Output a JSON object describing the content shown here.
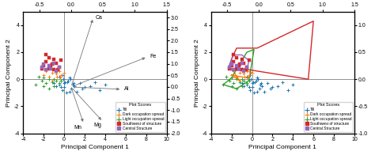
{
  "chart_data": [
    {
      "type": "scatter",
      "xlabel": "Principal Component 1",
      "ylabel": "Principal Component 2",
      "xlim": [
        -4,
        10
      ],
      "ylim": [
        -4,
        5
      ],
      "xticks": [
        -4,
        -2,
        0,
        2,
        4,
        6,
        8,
        10
      ],
      "yticks": [
        -4,
        -2,
        0,
        2,
        4
      ],
      "x2lim": [
        -0.75,
        1.5
      ],
      "x2ticks": [
        {
          "value": -0.5,
          "label": "-0.5"
        },
        {
          "value": 0.0,
          "label": "0.0"
        },
        {
          "value": 0.5,
          "label": "0.5"
        },
        {
          "value": 1.0,
          "label": "1.0"
        },
        {
          "value": 1.5,
          "label": "1.5"
        }
      ],
      "y2lim": [
        -2.0,
        3.25
      ],
      "y2ticks": [
        {
          "value": -2.0,
          "label": "-2.0"
        },
        {
          "value": -1.5,
          "label": "-1.5"
        },
        {
          "value": -1.0,
          "label": "-1.0"
        },
        {
          "value": -0.5,
          "label": "-0.5"
        },
        {
          "value": 0.0,
          "label": "0.0"
        },
        {
          "value": 0.5,
          "label": "0.5"
        },
        {
          "value": 1.0,
          "label": "1.0"
        },
        {
          "value": 1.5,
          "label": "1.5"
        },
        {
          "value": 2.0,
          "label": "2.0"
        },
        {
          "value": 2.5,
          "label": "2.5"
        },
        {
          "value": 3.0,
          "label": "3.0"
        }
      ],
      "reference_lines": {
        "x": [
          0
        ],
        "y": [
          0
        ],
        "color": "#666666"
      },
      "legend": "lower right",
      "legend_title": "Plot Scores",
      "series": [
        {
          "name": "Till",
          "marker": "plus",
          "points": [
            [
              -0.5,
              0.2
            ],
            [
              -0.3,
              -0.1
            ],
            [
              0.0,
              -0.3
            ],
            [
              0.3,
              -0.2
            ],
            [
              0.5,
              0.1
            ],
            [
              0.8,
              -0.4
            ],
            [
              1.0,
              -0.5
            ],
            [
              1.5,
              -0.3
            ],
            [
              2.0,
              -0.6
            ],
            [
              2.5,
              -0.5
            ],
            [
              3.0,
              -0.2
            ],
            [
              3.5,
              -0.8
            ],
            [
              4.0,
              -0.4
            ],
            [
              -0.8,
              -0.5
            ],
            [
              -0.2,
              -0.8
            ],
            [
              0.2,
              -1.0
            ],
            [
              0.0,
              -0.6
            ],
            [
              0.5,
              -0.9
            ],
            [
              -0.5,
              -0.4
            ],
            [
              -1.0,
              -0.3
            ],
            [
              -0.3,
              -0.6
            ],
            [
              0.7,
              -0.7
            ],
            [
              1.2,
              -0.9
            ],
            [
              -0.1,
              0.0
            ],
            [
              0.4,
              -0.1
            ],
            [
              0.1,
              -0.2
            ],
            [
              -0.2,
              0.3
            ],
            [
              0.6,
              0.0
            ],
            [
              0.9,
              -0.3
            ],
            [
              1.8,
              -0.7
            ]
          ]
        },
        {
          "name": "Dark occupation spread",
          "marker": "plus",
          "points": [
            [
              -1.5,
              0.2
            ],
            [
              -1.2,
              0.5
            ],
            [
              -1.0,
              0.8
            ],
            [
              -0.8,
              0.4
            ],
            [
              -0.5,
              0.6
            ],
            [
              -0.3,
              0.3
            ],
            [
              0.0,
              0.5
            ],
            [
              -2.0,
              0.3
            ],
            [
              -1.8,
              0.6
            ],
            [
              -1.2,
              -0.1
            ],
            [
              -0.7,
              0.2
            ],
            [
              -0.4,
              0.1
            ]
          ]
        },
        {
          "name": "Light occupation spread",
          "marker": "plus",
          "points": [
            [
              -2.5,
              0.2
            ],
            [
              -2.2,
              -0.1
            ],
            [
              -2.0,
              0.1
            ],
            [
              -1.8,
              -0.3
            ],
            [
              -1.5,
              0.0
            ],
            [
              -1.2,
              -0.2
            ],
            [
              -1.0,
              0.0
            ],
            [
              -0.8,
              -0.1
            ],
            [
              -2.8,
              -0.4
            ],
            [
              -2.0,
              -0.5
            ],
            [
              -1.5,
              -0.7
            ],
            [
              -1.0,
              -0.5
            ],
            [
              -0.5,
              -0.3
            ],
            [
              -0.3,
              -0.1
            ]
          ]
        },
        {
          "name": "Southwest of structure",
          "marker": "square",
          "points": [
            [
              -2.0,
              1.0
            ],
            [
              -1.8,
              1.3
            ],
            [
              -1.5,
              0.8
            ],
            [
              -1.2,
              1.1
            ],
            [
              -1.0,
              0.7
            ],
            [
              -0.8,
              1.2
            ],
            [
              -0.5,
              0.9
            ],
            [
              -0.3,
              1.4
            ],
            [
              -1.5,
              1.6
            ],
            [
              -1.0,
              1.5
            ],
            [
              -2.2,
              0.8
            ],
            [
              -1.8,
              1.8
            ],
            [
              -1.3,
              1.0
            ],
            [
              -0.6,
              0.7
            ]
          ]
        },
        {
          "name": "Central Structure",
          "marker": "square",
          "points": [
            [
              -2.2,
              0.9
            ],
            [
              -2.0,
              1.1
            ],
            [
              -1.8,
              0.7
            ],
            [
              -1.5,
              1.0
            ],
            [
              -1.3,
              0.8
            ],
            [
              -1.0,
              1.2
            ],
            [
              -0.8,
              0.6
            ],
            [
              -0.5,
              0.9
            ]
          ]
        }
      ],
      "loadings": {
        "color": "#777777",
        "vectors": [
          {
            "name": "Ca",
            "x": 0.35,
            "y": 3.0
          },
          {
            "name": "Fe",
            "x": 1.2,
            "y": 1.3
          },
          {
            "name": "Al",
            "x": 0.8,
            "y": -0.1
          },
          {
            "name": "Mn",
            "x": 0.2,
            "y": -1.6
          },
          {
            "name": "Mg",
            "x": 0.5,
            "y": -1.5
          }
        ]
      }
    },
    {
      "type": "scatter",
      "xlabel": "Principal Component 1",
      "ylabel": "Principal Component 2",
      "xlim": [
        -4,
        10
      ],
      "ylim": [
        -4,
        5
      ],
      "xticks": [
        -4,
        -2,
        0,
        2,
        4,
        6,
        8,
        10
      ],
      "yticks": [
        -4,
        -2,
        0,
        2,
        4
      ],
      "x2lim": [
        -0.75,
        1.5
      ],
      "x2ticks": [
        {
          "value": -0.5,
          "label": "-0.5"
        },
        {
          "value": 0.0,
          "label": "0.0"
        },
        {
          "value": 0.5,
          "label": "0.5"
        },
        {
          "value": 1.0,
          "label": "1.0"
        },
        {
          "value": 1.5,
          "label": "1.5"
        }
      ],
      "y2lim": [
        -1.0,
        1.25
      ],
      "y2ticks": [
        {
          "value": -1.0,
          "label": "-1.0"
        },
        {
          "value": -0.5,
          "label": "-0.5"
        },
        {
          "value": 0.0,
          "label": "0.0"
        },
        {
          "value": 0.5,
          "label": "0.5"
        },
        {
          "value": 1.0,
          "label": "1.0"
        }
      ],
      "reference_lines": {
        "x": [
          0
        ],
        "y": [
          0
        ],
        "color": "#666666"
      },
      "legend": "lower right",
      "legend_title": "Plot Scores",
      "series": [
        {
          "name": "Till",
          "marker": "plus",
          "points": [
            [
              -0.5,
              0.2
            ],
            [
              -0.3,
              -0.1
            ],
            [
              0.0,
              -0.3
            ],
            [
              0.3,
              -0.2
            ],
            [
              0.5,
              0.1
            ],
            [
              0.8,
              -0.4
            ],
            [
              1.0,
              -0.5
            ],
            [
              1.5,
              -0.3
            ],
            [
              2.0,
              -0.6
            ],
            [
              2.5,
              -0.5
            ],
            [
              3.0,
              -0.2
            ],
            [
              3.5,
              -0.8
            ],
            [
              4.0,
              -0.4
            ],
            [
              -0.8,
              -0.5
            ],
            [
              -0.2,
              -0.8
            ],
            [
              0.2,
              -1.0
            ],
            [
              0.0,
              -0.6
            ],
            [
              0.5,
              -0.9
            ],
            [
              -0.5,
              -0.4
            ],
            [
              -1.0,
              -0.3
            ],
            [
              -0.3,
              -0.6
            ],
            [
              0.7,
              -0.7
            ],
            [
              1.2,
              -0.9
            ],
            [
              -0.1,
              0.0
            ],
            [
              0.4,
              -0.1
            ],
            [
              0.1,
              -0.2
            ],
            [
              -0.2,
              0.3
            ],
            [
              0.6,
              0.0
            ],
            [
              0.9,
              -0.3
            ],
            [
              1.8,
              -0.7
            ]
          ]
        },
        {
          "name": "Dark occupation spread",
          "marker": "plus",
          "points": [
            [
              -1.5,
              0.2
            ],
            [
              -1.2,
              0.5
            ],
            [
              -1.0,
              0.8
            ],
            [
              -0.8,
              0.4
            ],
            [
              -0.5,
              0.6
            ],
            [
              -0.3,
              0.3
            ],
            [
              0.0,
              0.5
            ],
            [
              -2.0,
              0.3
            ],
            [
              -1.8,
              0.6
            ],
            [
              -1.2,
              -0.1
            ],
            [
              -0.7,
              0.2
            ],
            [
              -0.4,
              0.1
            ]
          ]
        },
        {
          "name": "Light occupation spread",
          "marker": "plus",
          "points": [
            [
              -2.5,
              0.2
            ],
            [
              -2.2,
              -0.1
            ],
            [
              -2.0,
              0.1
            ],
            [
              -1.8,
              -0.3
            ],
            [
              -1.5,
              0.0
            ],
            [
              -1.2,
              -0.2
            ],
            [
              -1.0,
              0.0
            ],
            [
              -0.8,
              -0.1
            ],
            [
              -2.8,
              -0.4
            ],
            [
              -2.0,
              -0.5
            ],
            [
              -1.5,
              -0.7
            ],
            [
              -1.0,
              -0.5
            ],
            [
              -0.5,
              -0.3
            ],
            [
              -0.3,
              -0.1
            ]
          ]
        },
        {
          "name": "Southwest of structure",
          "marker": "square",
          "points": [
            [
              -2.0,
              1.0
            ],
            [
              -1.8,
              1.3
            ],
            [
              -1.5,
              0.8
            ],
            [
              -1.2,
              1.1
            ],
            [
              -1.0,
              0.7
            ],
            [
              -0.8,
              1.2
            ],
            [
              -0.5,
              0.9
            ],
            [
              -0.3,
              1.4
            ],
            [
              -1.5,
              1.6
            ],
            [
              -1.0,
              1.5
            ],
            [
              -2.2,
              0.8
            ],
            [
              -1.8,
              1.8
            ],
            [
              -1.3,
              1.0
            ],
            [
              -0.6,
              0.7
            ]
          ]
        },
        {
          "name": "Central Structure",
          "marker": "square",
          "points": [
            [
              -2.2,
              0.9
            ],
            [
              -2.0,
              1.1
            ],
            [
              -1.8,
              0.7
            ],
            [
              -1.5,
              1.0
            ],
            [
              -1.3,
              0.8
            ],
            [
              -1.0,
              1.2
            ],
            [
              -0.8,
              0.6
            ],
            [
              -0.5,
              0.9
            ]
          ]
        }
      ],
      "hulls": [
        {
          "name": "Dark occupation spread",
          "points": [
            [
              -2.0,
              0.3
            ],
            [
              -0.4,
              0.1
            ],
            [
              0.0,
              0.5
            ],
            [
              -0.5,
              0.6
            ],
            [
              -1.0,
              0.8
            ],
            [
              -1.8,
              0.6
            ],
            [
              -1.5,
              0.2
            ],
            [
              -1.2,
              -0.1
            ]
          ]
        },
        {
          "name": "Light occupation spread",
          "points": [
            [
              -2.8,
              -0.4
            ],
            [
              -1.5,
              -0.7
            ],
            [
              -0.3,
              -0.1
            ],
            [
              -0.3,
              -0.1
            ],
            [
              0.2,
              2.2
            ],
            [
              -0.5,
              2.0
            ],
            [
              -2.0,
              0.1
            ]
          ]
        },
        {
          "name": "Southwest of structure",
          "points": [
            [
              -2.2,
              0.8
            ],
            [
              -0.3,
              0.7
            ],
            [
              5.5,
              0.0
            ],
            [
              6.0,
              4.3
            ],
            [
              0.5,
              2.3
            ],
            [
              -1.5,
              2.3
            ],
            [
              -2.0,
              1.5
            ]
          ]
        },
        {
          "name": "Central Structure",
          "points": [
            [
              -2.2,
              0.7
            ],
            [
              -0.5,
              0.6
            ],
            [
              -0.3,
              1.4
            ],
            [
              -1.0,
              1.8
            ],
            [
              -1.8,
              1.8
            ],
            [
              -2.2,
              1.1
            ]
          ]
        }
      ]
    }
  ]
}
